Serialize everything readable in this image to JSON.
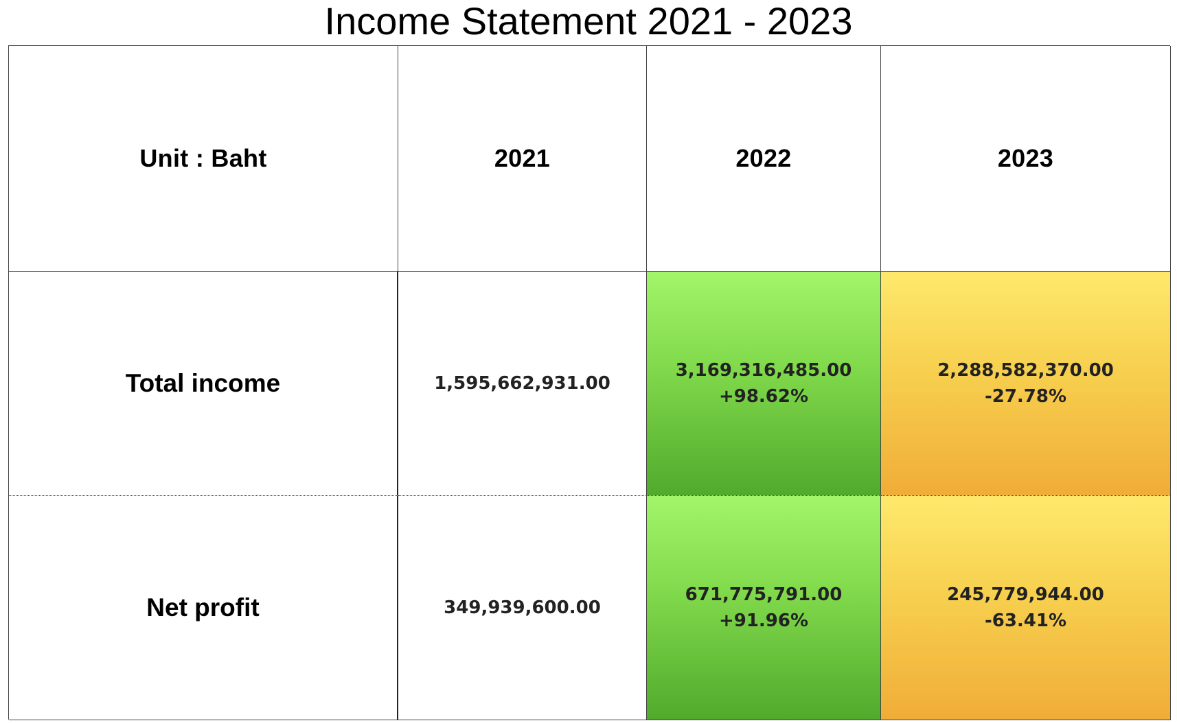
{
  "chart_data": {
    "type": "table",
    "title": "Income Statement 2021 - 2023",
    "header": {
      "unit_label": "Unit : Baht",
      "years": [
        "2021",
        "2022",
        "2023"
      ]
    },
    "rows": [
      {
        "label": "Total income",
        "cells": [
          {
            "value": "1,595,662,931.00",
            "change": ""
          },
          {
            "value": "3,169,316,485.00",
            "change": "+98.62%"
          },
          {
            "value": "2,288,582,370.00",
            "change": "-27.78%"
          }
        ]
      },
      {
        "label": "Net profit",
        "cells": [
          {
            "value": "349,939,600.00",
            "change": ""
          },
          {
            "value": "671,775,791.00",
            "change": "+91.96%"
          },
          {
            "value": "245,779,944.00",
            "change": "-63.41%"
          }
        ]
      }
    ],
    "colors": {
      "increase": "#7fd84a",
      "decrease": "#f7cf4e",
      "border": "#444444"
    }
  }
}
